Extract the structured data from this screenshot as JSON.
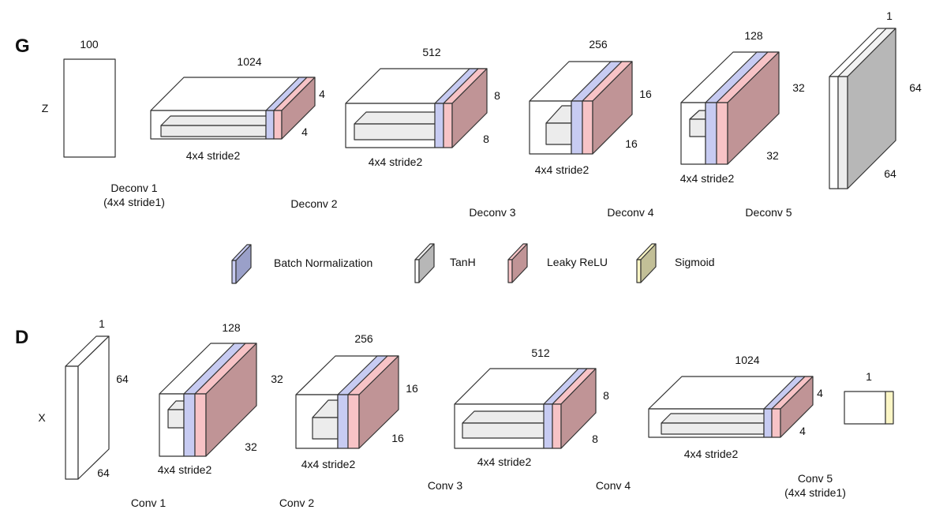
{
  "colors": {
    "batch_norm": "#c7cbf2",
    "leaky_relu": "#f7c3c6",
    "leaky_relu_side": "#c09496",
    "tanh_side": "#b7b7b7",
    "sigmoid": "#fbf6c5",
    "light_block": "#ececec"
  },
  "generator": {
    "section": "G",
    "input": {
      "label": "Z",
      "top": "100"
    },
    "blocks": [
      {
        "name": "Deconv 1",
        "sub": "(4x4 stride1)",
        "dim_top": "1024",
        "dim_right": "4",
        "dim_bottom": "4",
        "kernel": "4x4 stride2"
      },
      {
        "name": "Deconv 2",
        "dim_top": "512",
        "dim_right": "8",
        "dim_bottom": "8",
        "kernel": "4x4 stride2"
      },
      {
        "name": "Deconv 3",
        "dim_top": "256",
        "dim_right": "16",
        "dim_bottom": "16",
        "kernel": "4x4 stride2"
      },
      {
        "name": "Deconv 4",
        "dim_top": "128",
        "dim_right": "32",
        "dim_bottom": "32",
        "kernel": "4x4 stride2"
      },
      {
        "name": "Deconv 5",
        "dim_top": "1",
        "dim_right": "64",
        "dim_bottom": "64"
      }
    ]
  },
  "legend": [
    {
      "label": "Batch Normalization",
      "icon": "batch-norm-icon"
    },
    {
      "label": "TanH",
      "icon": "tanh-icon"
    },
    {
      "label": "Leaky ReLU",
      "icon": "leaky-relu-icon"
    },
    {
      "label": "Sigmoid",
      "icon": "sigmoid-icon"
    }
  ],
  "discriminator": {
    "section": "D",
    "input": {
      "label": "X",
      "dim_top": "1",
      "dim_right": "64",
      "dim_bottom": "64"
    },
    "blocks": [
      {
        "name": "Conv 1",
        "dim_top": "128",
        "dim_right": "32",
        "dim_bottom": "32",
        "kernel": "4x4 stride2"
      },
      {
        "name": "Conv 2",
        "dim_top": "256",
        "dim_right": "16",
        "dim_bottom": "16",
        "kernel": "4x4 stride2"
      },
      {
        "name": "Conv 3",
        "dim_top": "512",
        "dim_right": "8",
        "dim_bottom": "8",
        "kernel": "4x4 stride2"
      },
      {
        "name": "Conv 4",
        "dim_top": "1024",
        "dim_right": "4",
        "dim_bottom": "4",
        "kernel": "4x4 stride2"
      },
      {
        "name": "Conv 5",
        "sub": "(4x4 stride1)",
        "dim_top": "1"
      }
    ]
  }
}
